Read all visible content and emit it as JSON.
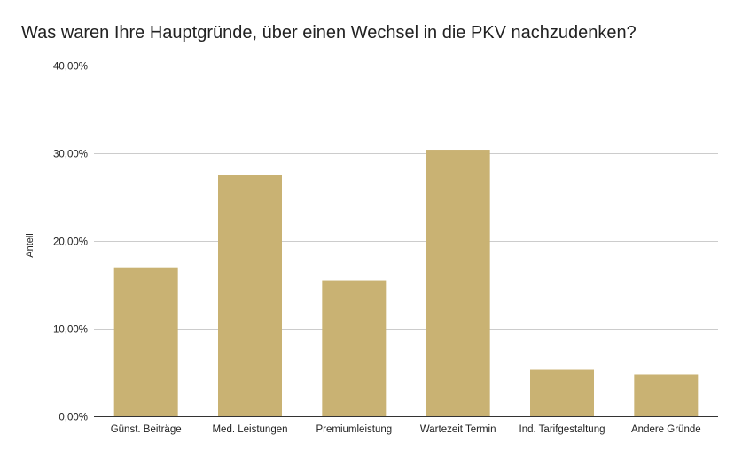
{
  "chart_data": {
    "type": "bar",
    "title": "Was waren Ihre Hauptgründe, über einen Wechsel in die PKV nachzudenken?",
    "xlabel": "",
    "ylabel": "Anteil",
    "categories": [
      "Günst. Beiträge",
      "Med. Leistungen",
      "Premiumleistung",
      "Wartezeit Termin",
      "Ind. Tarifgestaltung",
      "Andere Gründe"
    ],
    "values": [
      0.17,
      0.275,
      0.155,
      0.304,
      0.053,
      0.048
    ],
    "ylim": [
      0,
      0.4
    ],
    "yticks": [
      0,
      0.1,
      0.2,
      0.3,
      0.4
    ],
    "ytick_labels": [
      "0,00%",
      "10,00%",
      "20,00%",
      "30,00%",
      "40,00%"
    ],
    "bar_color": "#c9b273",
    "gridline_color": "#cccccc",
    "axis_color": "#333333",
    "grid": true,
    "legend": "none"
  }
}
